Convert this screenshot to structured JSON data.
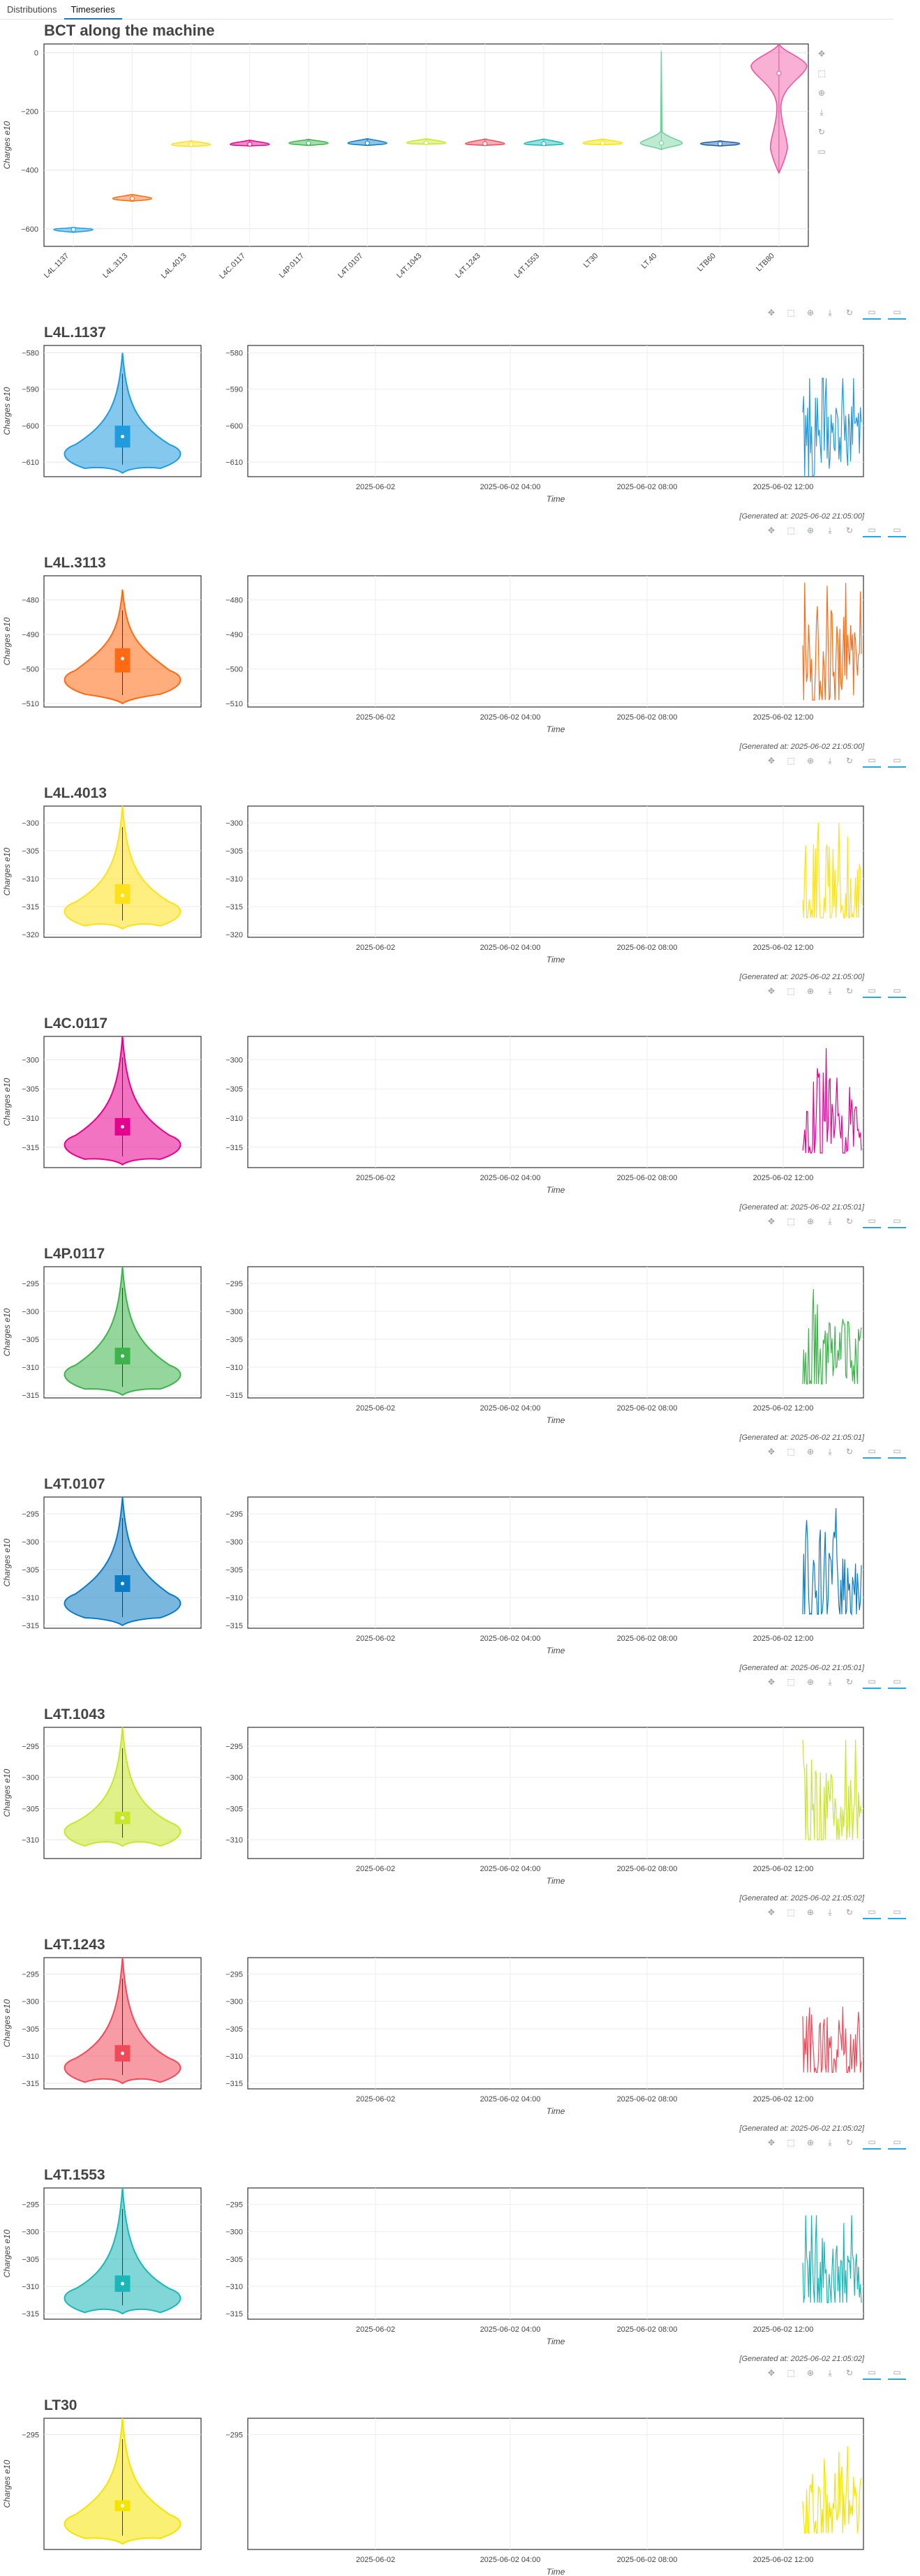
{
  "tabs": [
    {
      "label": "Distributions"
    },
    {
      "label": "Timeseries"
    }
  ],
  "overview": {
    "title": "BCT along the machine",
    "ylabel": "Charges e10",
    "yticks": [
      "0",
      "−200",
      "−400",
      "−600"
    ],
    "icons": [
      "pan-icon",
      "box-zoom-icon",
      "wheel-zoom-icon",
      "save-icon",
      "reset-icon",
      "hover-icon"
    ]
  },
  "toolbar_icons": [
    "pan-icon",
    "box-zoom-icon",
    "wheel-zoom-icon",
    "save-icon",
    "reset-icon",
    "hover-icon",
    "hover-icon"
  ],
  "chart_data": [
    {
      "type": "violin",
      "title": "BCT along the machine",
      "ylabel": "Charges e10",
      "ylim": [
        -660,
        30
      ],
      "categories": [
        "L4L.1137",
        "L4L.3113",
        "L4L.4013",
        "L4C.0117",
        "L4P.0117",
        "L4T.0107",
        "L4T.1043",
        "L4T.1243",
        "L4T.1553",
        "LT30",
        "LT.40",
        "LTB60",
        "LTB80"
      ],
      "medians": [
        -603,
        -497,
        -313,
        -312,
        -308,
        -308,
        -307,
        -310,
        -310,
        -308,
        -308,
        -310,
        -70
      ],
      "ranges": [
        [
          -612,
          -595
        ],
        [
          -506,
          -483
        ],
        [
          -320,
          -300
        ],
        [
          -318,
          -298
        ],
        [
          -316,
          -295
        ],
        [
          -316,
          -293
        ],
        [
          -312,
          -293
        ],
        [
          -316,
          -294
        ],
        [
          -316,
          -294
        ],
        [
          -314,
          -294
        ],
        [
          -330,
          5
        ],
        [
          -318,
          -300
        ],
        [
          -410,
          30
        ]
      ],
      "colors": [
        "#1f9bde",
        "#ff6a13",
        "#ffe119",
        "#e6008e",
        "#3cb44b",
        "#0b7bc4",
        "#c8e62a",
        "#f04a5a",
        "#1ab7b7",
        "#f5e400",
        "#6fd09c",
        "#1f5fa8",
        "#f04fa0"
      ]
    }
  ],
  "sections": [
    {
      "name": "L4L.1137",
      "color": "#1f9bde",
      "yticks": [
        "−580",
        "−590",
        "−600",
        "−610"
      ],
      "ylim": [
        -614,
        -578
      ],
      "median": -603,
      "q1": -606,
      "q3": -600,
      "min": -613,
      "max": -580,
      "ts_lo": -614,
      "ts_hi": -587,
      "generated": "[Generated at: 2025-06-02 21:05:00]"
    },
    {
      "name": "L4L.3113",
      "color": "#ff6a13",
      "yticks": [
        "−480",
        "−490",
        "−500",
        "−510"
      ],
      "ylim": [
        -511,
        -473
      ],
      "median": -497,
      "q1": -501,
      "q3": -494,
      "min": -510,
      "max": -477,
      "ts_lo": -509,
      "ts_hi": -475,
      "generated": "[Generated at: 2025-06-02 21:05:00]"
    },
    {
      "name": "L4L.4013",
      "color": "#ffe119",
      "yticks": [
        "−300",
        "−305",
        "−310",
        "−315",
        "−320"
      ],
      "ylim": [
        -320.5,
        -297
      ],
      "median": -313,
      "q1": -314.5,
      "q3": -311,
      "min": -319,
      "max": -297,
      "ts_lo": -317,
      "ts_hi": -300,
      "generated": "[Generated at: 2025-06-02 21:05:00]"
    },
    {
      "name": "L4C.0117",
      "color": "#e6008e",
      "yticks": [
        "−300",
        "−305",
        "−310",
        "−315"
      ],
      "ylim": [
        -318.5,
        -296
      ],
      "median": -311.5,
      "q1": -313,
      "q3": -310,
      "min": -318,
      "max": -296,
      "ts_lo": -316,
      "ts_hi": -298,
      "generated": "[Generated at: 2025-06-02 21:05:01]"
    },
    {
      "name": "L4P.0117",
      "color": "#3cb44b",
      "yticks": [
        "−295",
        "−300",
        "−305",
        "−310",
        "−315"
      ],
      "ylim": [
        -315.5,
        -292
      ],
      "median": -308,
      "q1": -309.5,
      "q3": -306.5,
      "min": -315,
      "max": -292,
      "ts_lo": -313,
      "ts_hi": -296,
      "generated": "[Generated at: 2025-06-02 21:05:01]"
    },
    {
      "name": "L4T.0107",
      "color": "#0b7bc4",
      "yticks": [
        "−295",
        "−300",
        "−305",
        "−310",
        "−315"
      ],
      "ylim": [
        -315.5,
        -292
      ],
      "median": -307.5,
      "q1": -309,
      "q3": -306,
      "min": -315,
      "max": -292,
      "ts_lo": -313,
      "ts_hi": -294,
      "generated": "[Generated at: 2025-06-02 21:05:01]"
    },
    {
      "name": "L4T.1043",
      "color": "#c8e62a",
      "yticks": [
        "−295",
        "−300",
        "−305",
        "−310"
      ],
      "ylim": [
        -313,
        -292
      ],
      "median": -306.5,
      "q1": -307.5,
      "q3": -305.5,
      "min": -311,
      "max": -292,
      "ts_lo": -310,
      "ts_hi": -294,
      "generated": "[Generated at: 2025-06-02 21:05:02]"
    },
    {
      "name": "L4T.1243",
      "color": "#f04a5a",
      "yticks": [
        "−295",
        "−300",
        "−305",
        "−310",
        "−315"
      ],
      "ylim": [
        -316,
        -292
      ],
      "median": -309.5,
      "q1": -311,
      "q3": -308,
      "min": -315,
      "max": -292,
      "ts_lo": -313,
      "ts_hi": -297,
      "generated": "[Generated at: 2025-06-02 21:05:02]"
    },
    {
      "name": "L4T.1553",
      "color": "#1ab7b7",
      "yticks": [
        "−295",
        "−300",
        "−305",
        "−310",
        "−315"
      ],
      "ylim": [
        -316,
        -292
      ],
      "median": -309.5,
      "q1": -311,
      "q3": -308,
      "min": -315,
      "max": -292,
      "ts_lo": -313,
      "ts_hi": -297,
      "generated": "[Generated at: 2025-06-02 21:05:02]"
    },
    {
      "name": "LT30",
      "color": "#f5e400",
      "yticks": [
        "−295"
      ],
      "ylim": [
        -316,
        -292
      ],
      "median": -308,
      "q1": -309,
      "q3": -307,
      "min": -315,
      "max": -292,
      "ts_lo": -313,
      "ts_hi": -296,
      "generated": ""
    }
  ],
  "ylabel": "Charges e10",
  "xlabel": "Time",
  "time_ticks": [
    "2025-06-02",
    "2025-06-02 04:00",
    "2025-06-02 08:00",
    "2025-06-02 12:00"
  ]
}
